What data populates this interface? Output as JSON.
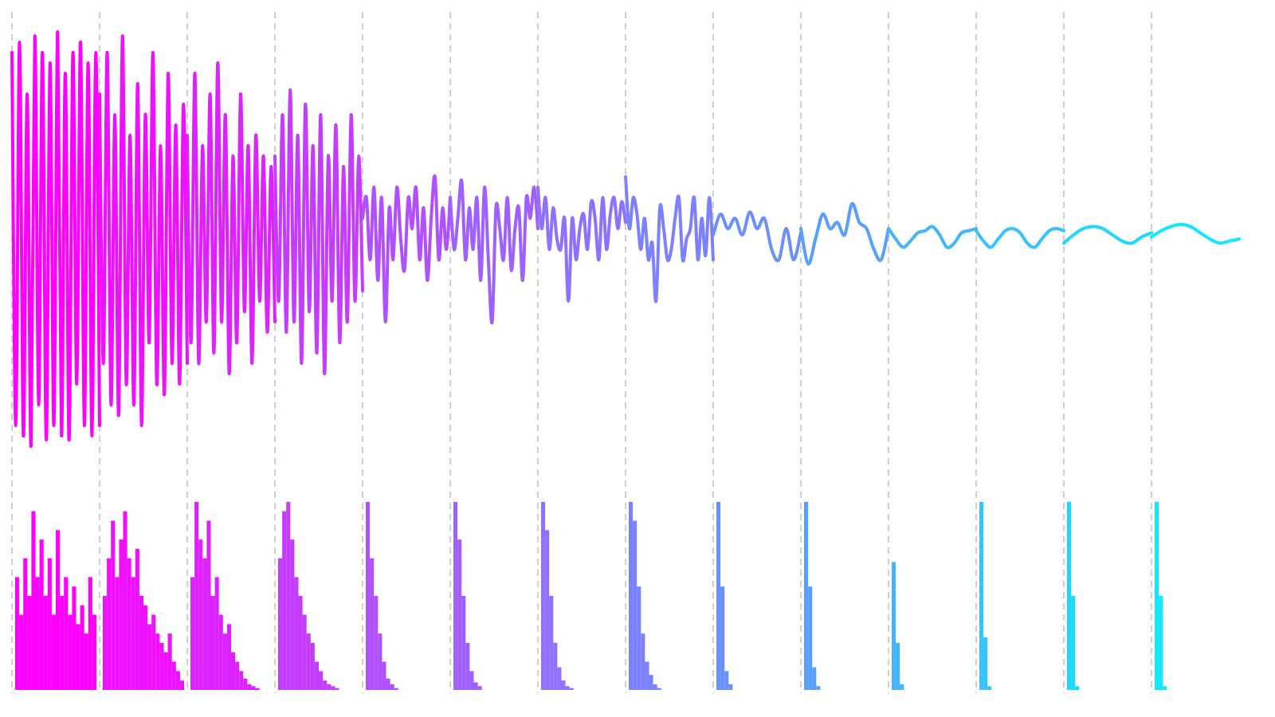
{
  "chart_data": {
    "type": "line",
    "ylim": [
      -1,
      1
    ],
    "spectrum_ylim": [
      0,
      1
    ],
    "segments": [
      {
        "color": "#ff00ff",
        "wave": [
          0.9,
          -0.9,
          0.95,
          -0.95,
          0.7,
          -1,
          0.98,
          -0.8,
          0.9,
          -0.97,
          0.85,
          -0.9,
          1,
          -0.95,
          0.8,
          -0.97,
          0.9,
          -0.7,
          0.95,
          -0.9,
          0.85,
          -0.95,
          0.9,
          -0.9
        ],
        "spectrum": [
          0.6,
          0.4,
          0.7,
          0.5,
          0.95,
          0.6,
          0.8,
          0.5,
          0.7,
          0.4,
          0.85,
          0.5,
          0.6,
          0.4,
          0.55,
          0.35,
          0.45,
          0.3,
          0.6,
          0.4
        ]
      },
      {
        "color": "#ee10ff",
        "wave": [
          0.7,
          -0.6,
          0.9,
          -0.8,
          0.6,
          -0.85,
          0.98,
          -0.7,
          0.5,
          -0.8,
          0.75,
          -0.9,
          0.6,
          -0.5,
          0.9,
          -0.7,
          0.45,
          -0.75,
          0.8,
          -0.6,
          0.55,
          -0.7,
          0.65,
          -0.6
        ],
        "spectrum": [
          0.5,
          0.7,
          0.9,
          0.6,
          0.8,
          0.95,
          0.7,
          0.6,
          0.75,
          0.5,
          0.45,
          0.35,
          0.4,
          0.3,
          0.25,
          0.2,
          0.3,
          0.15,
          0.1,
          0.05
        ]
      },
      {
        "color": "#dd22ff",
        "wave": [
          0.5,
          -0.5,
          0.8,
          -0.6,
          0.45,
          -0.4,
          0.7,
          -0.55,
          0.85,
          -0.4,
          0.6,
          -0.65,
          0.4,
          -0.5,
          0.7,
          -0.35,
          0.45,
          -0.6,
          0.5,
          -0.3,
          0.4,
          -0.45,
          0.35,
          -0.4
        ],
        "spectrum": [
          0.6,
          1,
          0.8,
          0.7,
          0.9,
          0.5,
          0.6,
          0.4,
          0.3,
          0.35,
          0.2,
          0.15,
          0.1,
          0.06,
          0.03,
          0.02,
          0.01,
          0,
          0,
          0
        ]
      },
      {
        "color": "#c63cff",
        "wave": [
          0.4,
          -0.3,
          0.6,
          -0.45,
          0.72,
          -0.4,
          0.5,
          -0.6,
          0.65,
          -0.35,
          0.45,
          -0.55,
          0.6,
          -0.65,
          0.4,
          -0.3,
          0.55,
          -0.5,
          0.35,
          -0.4,
          0.6,
          -0.3,
          0.4,
          -0.25
        ],
        "spectrum": [
          0.7,
          0.95,
          1,
          0.8,
          0.6,
          0.5,
          0.4,
          0.3,
          0.25,
          0.15,
          0.1,
          0.05,
          0.03,
          0.02,
          0.01,
          0,
          0,
          0,
          0,
          0
        ]
      },
      {
        "color": "#b050ff",
        "wave": [
          0.1,
          0.2,
          -0.1,
          0.25,
          -0.2,
          0.2,
          -0.4,
          0.15,
          -0.1,
          0.25,
          0,
          -0.15,
          0.2,
          0.05,
          0.25,
          -0.1,
          0.15,
          -0.2,
          0.1,
          0.3,
          -0.1,
          0.15,
          -0.05,
          0.2
        ],
        "spectrum": [
          1,
          0.7,
          0.5,
          0.3,
          0.15,
          0.06,
          0.03,
          0.01,
          0,
          0,
          0,
          0,
          0,
          0,
          0,
          0,
          0,
          0,
          0,
          0
        ]
      },
      {
        "color": "#a060ff",
        "wave": [
          0.2,
          -0.05,
          0.1,
          0.28,
          -0.1,
          0.15,
          -0.05,
          0.2,
          -0.2,
          0.25,
          -0.1,
          -0.4,
          0.15,
          0.05,
          -0.1,
          0.2,
          -0.15,
          0.05,
          0.15,
          -0.2,
          0.2,
          0.1,
          0.25,
          0.05
        ],
        "spectrum": [
          1,
          0.8,
          0.5,
          0.25,
          0.1,
          0.04,
          0.02,
          0,
          0,
          0,
          0,
          0,
          0,
          0,
          0,
          0,
          0,
          0,
          0,
          0
        ]
      },
      {
        "color": "#9070ff",
        "wave": [
          0.25,
          0.05,
          0.2,
          -0.05,
          0.15,
          0,
          -0.05,
          0.1,
          -0.3,
          0.1,
          -0.1,
          0.05,
          0.12,
          -0.05,
          0.18,
          0.1,
          -0.1,
          0.2,
          -0.05,
          0.12,
          0.2,
          0.05,
          0.18,
          0.08
        ],
        "spectrum": [
          1,
          0.85,
          0.5,
          0.25,
          0.12,
          0.05,
          0.02,
          0.01,
          0,
          0,
          0,
          0,
          0,
          0,
          0,
          0,
          0,
          0,
          0,
          0
        ]
      },
      {
        "color": "#7d80ff",
        "wave": [
          0.3,
          0.05,
          0.2,
          0.12,
          -0.05,
          0.1,
          -0.1,
          -0.02,
          -0.3,
          0.15,
          0.05,
          -0.1,
          -0.05,
          0.1,
          0.2,
          -0.1,
          0,
          0.05,
          0.2,
          -0.1,
          0.1,
          -0.08,
          0.2,
          -0.1
        ],
        "spectrum": [
          1,
          0.9,
          0.55,
          0.3,
          0.15,
          0.08,
          0.03,
          0.01,
          0,
          0,
          0,
          0,
          0,
          0,
          0,
          0,
          0,
          0,
          0,
          0
        ]
      },
      {
        "color": "#6a90ff",
        "wave": [
          0.02,
          0.12,
          0.05,
          0.1,
          0.02,
          0.13,
          0.05,
          0.1,
          -0.05,
          -0.1,
          0.05,
          -0.1,
          0.03
        ],
        "spectrum": [
          1,
          0.55,
          0.1,
          0.03,
          0,
          0,
          0,
          0,
          0,
          0,
          0,
          0,
          0,
          0,
          0,
          0,
          0,
          0,
          0,
          0
        ]
      },
      {
        "color": "#58a0ff",
        "wave": [
          0.05,
          -0.12,
          0,
          0.12,
          0.05,
          0.08,
          0.02,
          0.17,
          0.08,
          0.05,
          -0.05,
          -0.1,
          0.05
        ],
        "spectrum": [
          1,
          0.55,
          0.12,
          0.02,
          0,
          0,
          0,
          0,
          0,
          0,
          0,
          0,
          0,
          0,
          0,
          0,
          0,
          0,
          0,
          0
        ]
      },
      {
        "color": "#45b4ff",
        "wave": [
          0.05,
          0,
          -0.04,
          -0.01,
          0.03,
          0.04,
          0.06,
          0.02,
          -0.04,
          -0.02,
          0.03,
          0.04,
          0.05
        ],
        "spectrum": [
          0.68,
          0.25,
          0.03,
          0,
          0,
          0,
          0,
          0,
          0,
          0,
          0,
          0,
          0,
          0,
          0,
          0,
          0,
          0,
          0,
          0
        ]
      },
      {
        "color": "#35c4ff",
        "wave": [
          0.04,
          -0.01,
          -0.04,
          0,
          0.04,
          0.05,
          0.03,
          -0.02,
          -0.04,
          0,
          0.04,
          0.05,
          0.04
        ],
        "spectrum": [
          1,
          0.28,
          0.02,
          0,
          0,
          0,
          0,
          0,
          0,
          0,
          0,
          0,
          0,
          0,
          0,
          0,
          0,
          0,
          0,
          0
        ]
      },
      {
        "color": "#20d8ff",
        "wave": [
          -0.02,
          0.02,
          0.05,
          0.06,
          0.05,
          0.02,
          -0.01,
          -0.02,
          0.01,
          0.03
        ],
        "spectrum": [
          1,
          0.5,
          0.02,
          0,
          0,
          0,
          0,
          0,
          0,
          0,
          0,
          0,
          0,
          0,
          0,
          0,
          0,
          0,
          0,
          0
        ]
      },
      {
        "color": "#10e8ff",
        "wave": [
          0.01,
          0.04,
          0.06,
          0.07,
          0.06,
          0.03,
          0,
          -0.02,
          -0.01,
          0
        ],
        "spectrum": [
          1,
          0.5,
          0.02,
          0,
          0,
          0,
          0,
          0,
          0,
          0,
          0,
          0,
          0,
          0,
          0,
          0,
          0,
          0,
          0,
          0
        ]
      }
    ]
  }
}
